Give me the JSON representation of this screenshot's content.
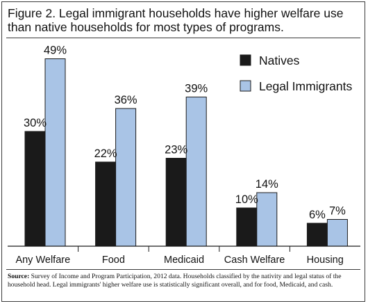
{
  "figure": {
    "title": "Figure 2. Legal immigrant households have higher welfare use than native households for most types of programs."
  },
  "source_note": {
    "lead": "Source:",
    "text": " Survey of Income and Program Participation, 2012 data. Households classified by the nativity and legal status of the household head. Legal immigrants' higher welfare use is statistically significant overall, and for food, Medicaid, and cash."
  },
  "chart_data": {
    "type": "bar",
    "title": "Figure 2. Legal immigrant households have higher welfare use than native households for most types of programs.",
    "categories": [
      "Any Welfare",
      "Food",
      "Medicaid",
      "Cash Welfare",
      "Housing"
    ],
    "series": [
      {
        "name": "Natives",
        "values": [
          30,
          22,
          23,
          10,
          6
        ],
        "labels": [
          "30%",
          "22%",
          "23%",
          "10%",
          "6%"
        ],
        "color": "#1a1a1a"
      },
      {
        "name": "Legal Immigrants",
        "values": [
          49,
          36,
          39,
          14,
          7
        ],
        "labels": [
          "49%",
          "36%",
          "39%",
          "14%",
          "7%"
        ],
        "color": "#a9c4e6"
      }
    ],
    "ylim": [
      0,
      50
    ],
    "grid": false,
    "legend": "top-right",
    "xlabel": "",
    "ylabel": ""
  }
}
